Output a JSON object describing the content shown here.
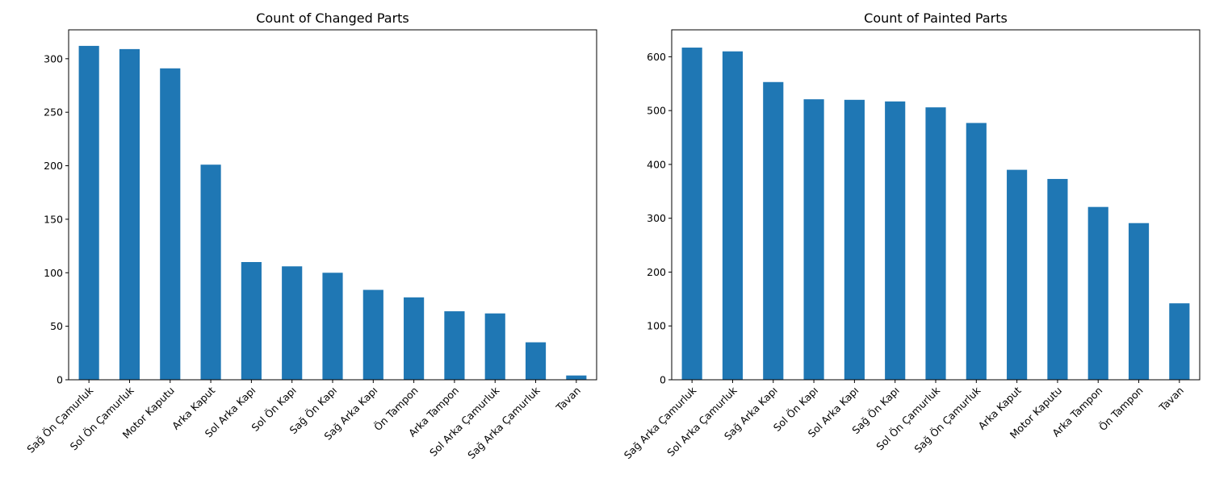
{
  "chart_data": [
    {
      "type": "bar",
      "title": "Count of Changed Parts",
      "xlabel": "",
      "ylabel": "",
      "categories": [
        "Sağ Ön Çamurluk",
        "Sol Ön Çamurluk",
        "Motor Kaputu",
        "Arka Kaput",
        "Sol Arka Kapı",
        "Sol Ön Kapı",
        "Sağ Ön Kapı",
        "Sağ Arka Kapı",
        "Ön Tampon",
        "Arka Tampon",
        "Sol Arka Çamurluk",
        "Sağ Arka Çamurluk",
        "Tavan"
      ],
      "values": [
        312,
        309,
        291,
        201,
        110,
        106,
        100,
        84,
        77,
        64,
        62,
        35,
        4
      ],
      "ylim": [
        0,
        327
      ],
      "yticks": [
        0,
        50,
        100,
        150,
        200,
        250,
        300
      ],
      "color": "#1f77b4",
      "grid": false,
      "legend": false
    },
    {
      "type": "bar",
      "title": "Count of Painted Parts",
      "xlabel": "",
      "ylabel": "",
      "categories": [
        "Sağ Arka Çamurluk",
        "Sol Arka Çamurluk",
        "Sağ Arka Kapı",
        "Sol Ön Kapı",
        "Sol Arka Kapı",
        "Sağ Ön Kapı",
        "Sol Ön Çamurluk",
        "Sağ Ön Çamurluk",
        "Arka Kaput",
        "Motor Kaputu",
        "Arka Tampon",
        "Ön Tampon",
        "Tavan"
      ],
      "values": [
        617,
        610,
        553,
        521,
        520,
        517,
        506,
        477,
        390,
        373,
        321,
        291,
        142
      ],
      "ylim": [
        0,
        650
      ],
      "yticks": [
        0,
        100,
        200,
        300,
        400,
        500,
        600
      ],
      "color": "#1f77b4",
      "grid": false,
      "legend": false
    }
  ]
}
